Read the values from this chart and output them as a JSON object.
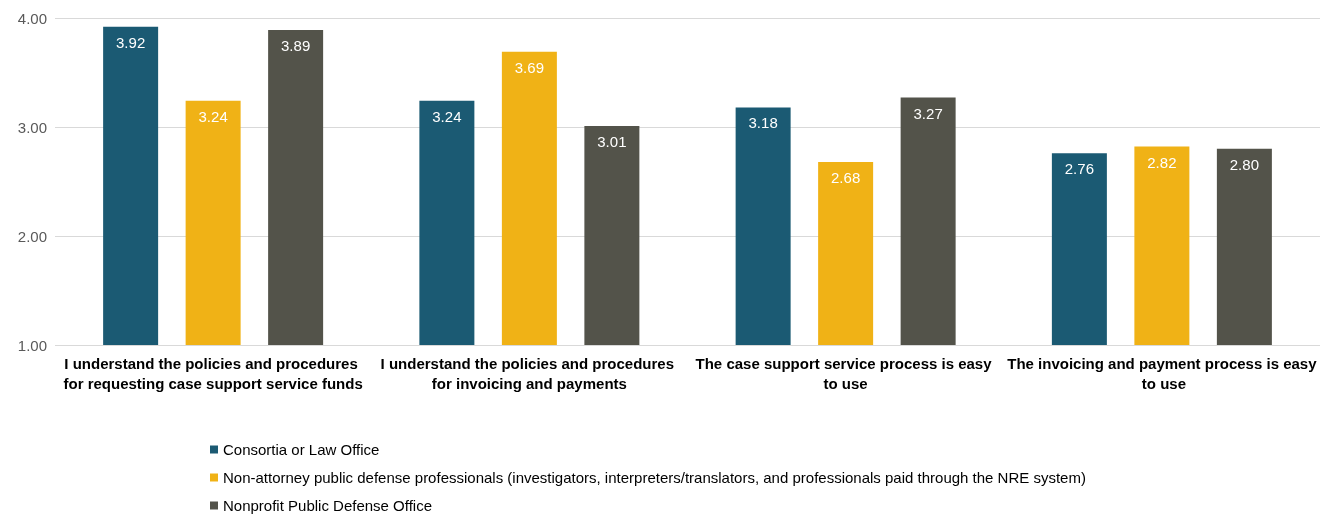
{
  "chart_data": {
    "type": "bar",
    "categories": [
      "I understand the policies and procedures for requesting case support service funds",
      "I understand the policies and procedures for invoicing and payments",
      "The case support service process is easy to use",
      "The invoicing and payment process is easy to use"
    ],
    "series": [
      {
        "name": "Consortia or Law Office",
        "color": "#1b5a73",
        "values": [
          3.92,
          3.24,
          3.18,
          2.76
        ],
        "value_labels": [
          "3.92",
          "3.24",
          "3.18",
          "2.76"
        ]
      },
      {
        "name": "Non-attorney public defense professionals (investigators, interpreters/translators, and professionals paid through the NRE system)",
        "color": "#f0b216",
        "values": [
          3.24,
          3.69,
          2.68,
          2.82
        ],
        "value_labels": [
          "3.24",
          "3.69",
          "2.68",
          "2.82"
        ]
      },
      {
        "name": "Nonprofit Public Defense Office",
        "color": "#53534a",
        "values": [
          3.89,
          3.01,
          3.27,
          2.8
        ],
        "value_labels": [
          "3.89",
          "3.01",
          "3.27",
          "2.80"
        ]
      }
    ],
    "ylim": [
      1,
      4
    ],
    "yticks": [
      {
        "value": 1,
        "label": "1.00"
      },
      {
        "value": 2,
        "label": "2.00"
      },
      {
        "value": 3,
        "label": "3.00"
      },
      {
        "value": 4,
        "label": "4.00"
      }
    ],
    "grid": "y",
    "legend": "bottom"
  }
}
